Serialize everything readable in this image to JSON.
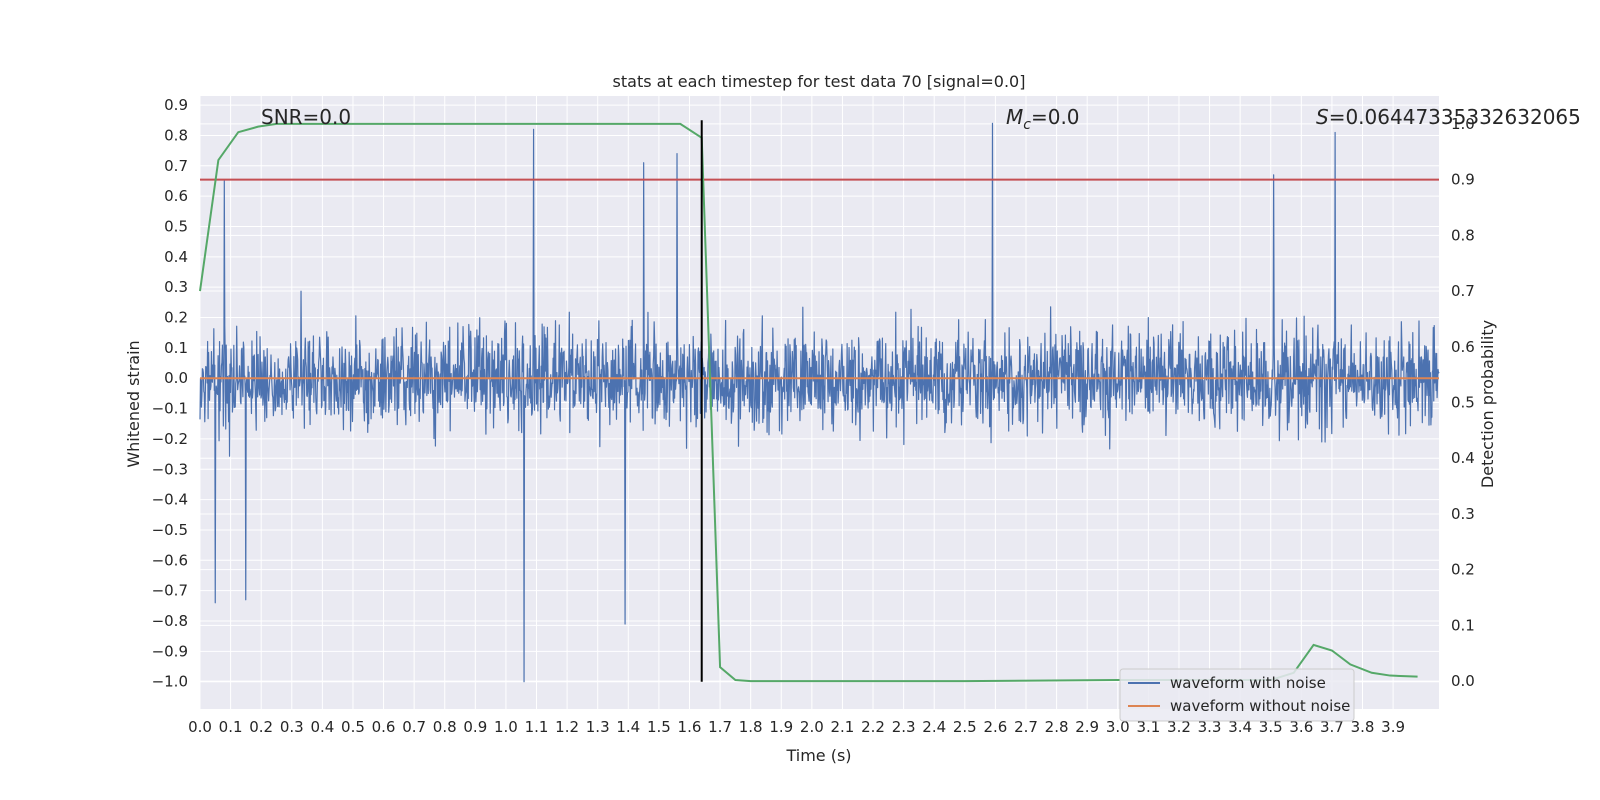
{
  "chart_data": {
    "type": "line",
    "title": "stats at each timestep for test data 70 [signal=0.0]",
    "xlabel": "Time (s)",
    "ylabel_left": "Whitened strain",
    "ylabel_right": "Detection probability",
    "xlim": [
      0.0,
      4.05
    ],
    "ylim_left": [
      -1.09,
      0.93
    ],
    "ylim_right": [
      -0.05,
      1.05
    ],
    "x_ticks": [
      "0.0",
      "0.1",
      "0.2",
      "0.3",
      "0.4",
      "0.5",
      "0.6",
      "0.7",
      "0.8",
      "0.9",
      "1.0",
      "1.1",
      "1.2",
      "1.3",
      "1.4",
      "1.5",
      "1.6",
      "1.7",
      "1.8",
      "1.9",
      "2.0",
      "2.1",
      "2.2",
      "2.3",
      "2.4",
      "2.5",
      "2.6",
      "2.7",
      "2.8",
      "2.9",
      "3.0",
      "3.1",
      "3.2",
      "3.3",
      "3.4",
      "3.5",
      "3.6",
      "3.7",
      "3.8",
      "3.9"
    ],
    "y_ticks_left": [
      "0.9",
      "0.8",
      "0.7",
      "0.6",
      "0.5",
      "0.4",
      "0.3",
      "0.2",
      "0.1",
      "0.0",
      "−0.1",
      "−0.2",
      "−0.3",
      "−0.4",
      "−0.5",
      "−0.6",
      "−0.7",
      "−0.8",
      "−0.9",
      "−1.0"
    ],
    "y_ticks_right": [
      "1.0",
      "0.9",
      "0.8",
      "0.7",
      "0.6",
      "0.5",
      "0.4",
      "0.3",
      "0.2",
      "0.1",
      "0.0"
    ],
    "annotations": {
      "snr": "SNR=0.0",
      "mc_symbol": "M",
      "mc_sub": "c",
      "mc_value": "=0.0",
      "s_symbol": "S",
      "s_value": "=0.06447335332632065"
    },
    "legend": {
      "placement": "lower-right",
      "entries": [
        {
          "label": "waveform with noise",
          "color": "#4c72b0"
        },
        {
          "label": "waveform without noise",
          "color": "#dd8452"
        }
      ]
    },
    "series": [
      {
        "name": "waveform with noise",
        "axis": "left",
        "color": "#4c72b0",
        "kind": "dense noise, |amplitude| mostly below 0.6",
        "spikes": [
          {
            "x": 0.05,
            "y": -0.74
          },
          {
            "x": 0.08,
            "y": 0.65
          },
          {
            "x": 0.15,
            "y": -0.73
          },
          {
            "x": 1.06,
            "y": -1.0
          },
          {
            "x": 1.09,
            "y": 0.82
          },
          {
            "x": 1.39,
            "y": -0.81
          },
          {
            "x": 1.45,
            "y": 0.71
          },
          {
            "x": 1.56,
            "y": 0.74
          },
          {
            "x": 2.59,
            "y": 0.84
          },
          {
            "x": 3.51,
            "y": 0.67
          },
          {
            "x": 3.71,
            "y": 0.81
          }
        ]
      },
      {
        "name": "waveform without noise",
        "axis": "left",
        "color": "#dd8452",
        "x": [
          0.0,
          4.05
        ],
        "y": [
          0.0,
          0.0
        ]
      },
      {
        "name": "detection probability",
        "axis": "right",
        "color": "#55a868",
        "x": [
          0.0,
          0.06,
          0.125,
          0.19,
          0.25,
          0.5,
          1.0,
          1.5,
          1.57,
          1.64,
          1.7,
          1.75,
          1.8,
          2.5,
          3.0,
          3.5,
          3.575,
          3.64,
          3.7,
          3.76,
          3.83,
          3.89,
          3.98
        ],
        "y": [
          0.7,
          0.935,
          0.985,
          0.995,
          1.0,
          1.0,
          1.0,
          1.0,
          1.0,
          0.975,
          0.025,
          0.002,
          0.0,
          0.0,
          0.002,
          0.002,
          0.015,
          0.065,
          0.055,
          0.03,
          0.015,
          0.01,
          0.008
        ]
      }
    ],
    "horizontal_line": {
      "axis": "right",
      "value": 0.9,
      "color": "#c44e52"
    },
    "vertical_line": {
      "x": 1.64,
      "y_range_left": [
        -1.0,
        0.85
      ],
      "color": "#000000"
    }
  }
}
